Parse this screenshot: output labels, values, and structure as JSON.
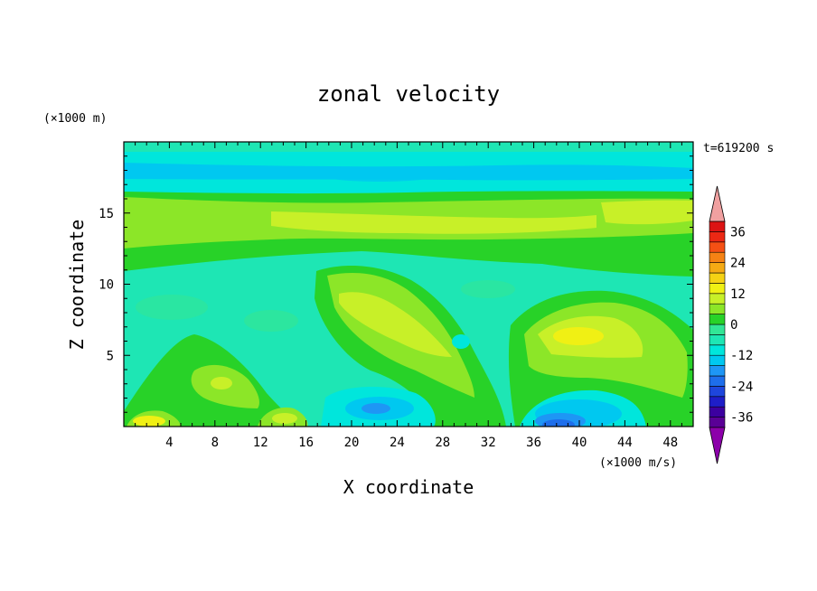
{
  "chart_data": {
    "type": "heatmap",
    "title": "zonal velocity",
    "xlabel": "X coordinate",
    "ylabel": "Z coordinate",
    "x_unit": "(×1000 m/s)",
    "y_unit": "(×1000 m)",
    "time_label": "t=619200 s",
    "xlim": [
      0,
      50
    ],
    "ylim": [
      0,
      20
    ],
    "x_ticks": [
      4,
      8,
      12,
      16,
      20,
      24,
      28,
      32,
      36,
      40,
      44,
      48
    ],
    "y_ticks": [
      5,
      10,
      15
    ],
    "colorbar": {
      "levels": [
        -40,
        -36,
        -32,
        -28,
        -24,
        -20,
        -16,
        -12,
        -8,
        -4,
        0,
        4,
        8,
        12,
        16,
        20,
        24,
        28,
        32,
        36,
        40
      ],
      "labels": [
        36,
        24,
        12,
        0,
        -12,
        -24,
        -36
      ],
      "colors": [
        "#5a0096",
        "#3c00a0",
        "#1e1ec8",
        "#1e46dc",
        "#1e6eeb",
        "#1e96f5",
        "#00c8f0",
        "#00e6dc",
        "#1ee6b4",
        "#32e696",
        "#28d228",
        "#8ce628",
        "#c8f028",
        "#f0f014",
        "#f5d214",
        "#f5aa14",
        "#f58214",
        "#f55014",
        "#eb2814",
        "#dc1414"
      ],
      "under_color": "#8c00aa",
      "over_color": "#f0a0a0"
    },
    "field_description_values": [
      {
        "x": 22,
        "z": 8,
        "u": 10
      },
      {
        "x": 40,
        "z": 6.5,
        "u": 14
      },
      {
        "x": 38,
        "z": 0.5,
        "u": -20
      },
      {
        "x": 22,
        "z": 1.5,
        "u": -16
      },
      {
        "x": 10,
        "z": 3,
        "u": 10
      },
      {
        "x": 25,
        "z": 18.5,
        "u": -10
      },
      {
        "x": 25,
        "z": 14.5,
        "u": 6
      }
    ]
  }
}
